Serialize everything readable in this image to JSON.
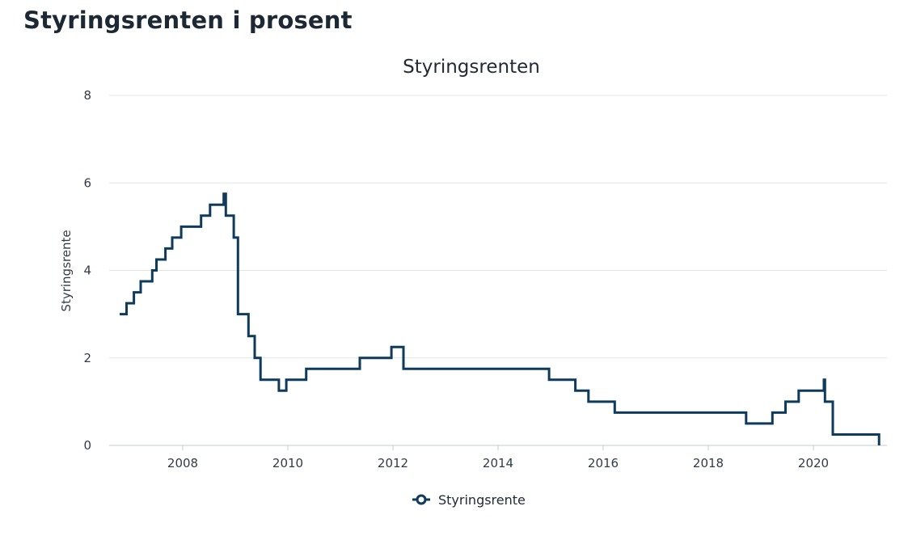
{
  "page": {
    "heading": "Styringsrenten i prosent"
  },
  "colors": {
    "series": "#0e3a5c",
    "grid": "#e3e6e9"
  },
  "chart_data": {
    "type": "line",
    "step": true,
    "title": "Styringsrenten",
    "xlabel": "",
    "ylabel": "Styringsrente",
    "xlim": [
      2006.6,
      2021.4
    ],
    "ylim": [
      0,
      8
    ],
    "xticks": [
      2008,
      2010,
      2012,
      2014,
      2016,
      2018,
      2020
    ],
    "yticks": [
      0,
      2,
      4,
      6,
      8
    ],
    "grid": true,
    "legend_position": "bottom-center",
    "series": [
      {
        "name": "Styringsrente",
        "x": [
          2006.8,
          2006.93,
          2007.07,
          2007.2,
          2007.42,
          2007.5,
          2007.67,
          2007.8,
          2007.97,
          2008.35,
          2008.52,
          2008.78,
          2008.82,
          2008.97,
          2009.05,
          2009.25,
          2009.37,
          2009.48,
          2009.83,
          2009.97,
          2010.35,
          2011.37,
          2011.97,
          2012.2,
          2014.97,
          2015.47,
          2015.72,
          2016.22,
          2018.72,
          2019.22,
          2019.47,
          2019.72,
          2020.2,
          2020.22,
          2020.37,
          2021.25
        ],
        "y": [
          3.0,
          3.25,
          3.5,
          3.75,
          4.0,
          4.25,
          4.5,
          4.75,
          5.0,
          5.25,
          5.5,
          5.75,
          5.25,
          4.75,
          3.0,
          2.5,
          2.0,
          1.5,
          1.25,
          1.5,
          1.75,
          2.0,
          2.25,
          1.75,
          1.5,
          1.25,
          1.0,
          0.75,
          0.5,
          0.75,
          1.0,
          1.25,
          1.5,
          1.0,
          0.25,
          0.0
        ]
      }
    ]
  }
}
